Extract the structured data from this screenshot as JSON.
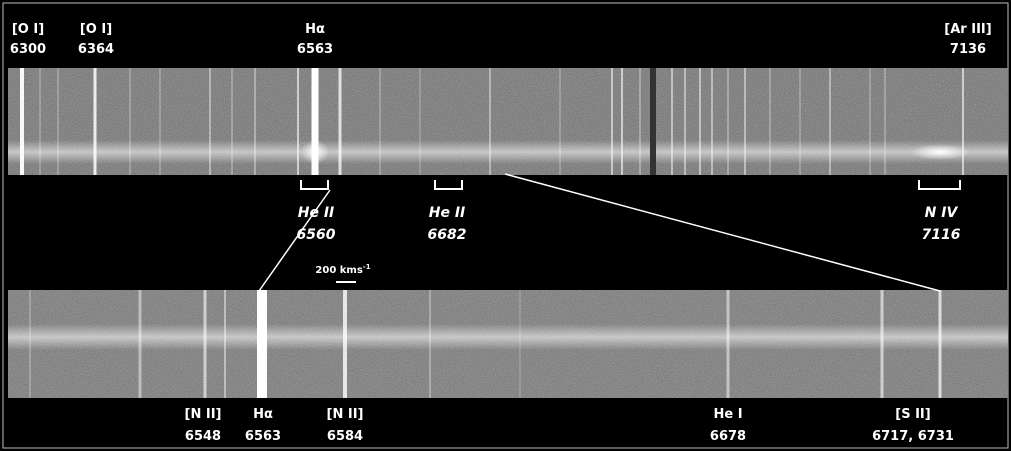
{
  "top_labels": [
    {
      "name": "[O I]",
      "wavelength": "6300"
    },
    {
      "name": "[O I]",
      "wavelength": "6364"
    },
    {
      "name": "Hα",
      "wavelength": "6563"
    },
    {
      "name": "[Ar III]",
      "wavelength": "7136"
    }
  ],
  "helium_labels": [
    {
      "name": "He II",
      "wavelength": "6560"
    },
    {
      "name": "He II",
      "wavelength": "6682"
    },
    {
      "name": "N IV",
      "wavelength": "7116"
    }
  ],
  "scale_bar": {
    "text": "200 kms",
    "superscript": "-1"
  },
  "bottom_labels": [
    {
      "name": "[N II]",
      "wavelength": "6548"
    },
    {
      "name": "Hα",
      "wavelength": "6563"
    },
    {
      "name": "[N II]",
      "wavelength": "6584"
    },
    {
      "name": "He I",
      "wavelength": "6678"
    },
    {
      "name": "[S II]",
      "wavelength": "6717, 6731"
    }
  ]
}
